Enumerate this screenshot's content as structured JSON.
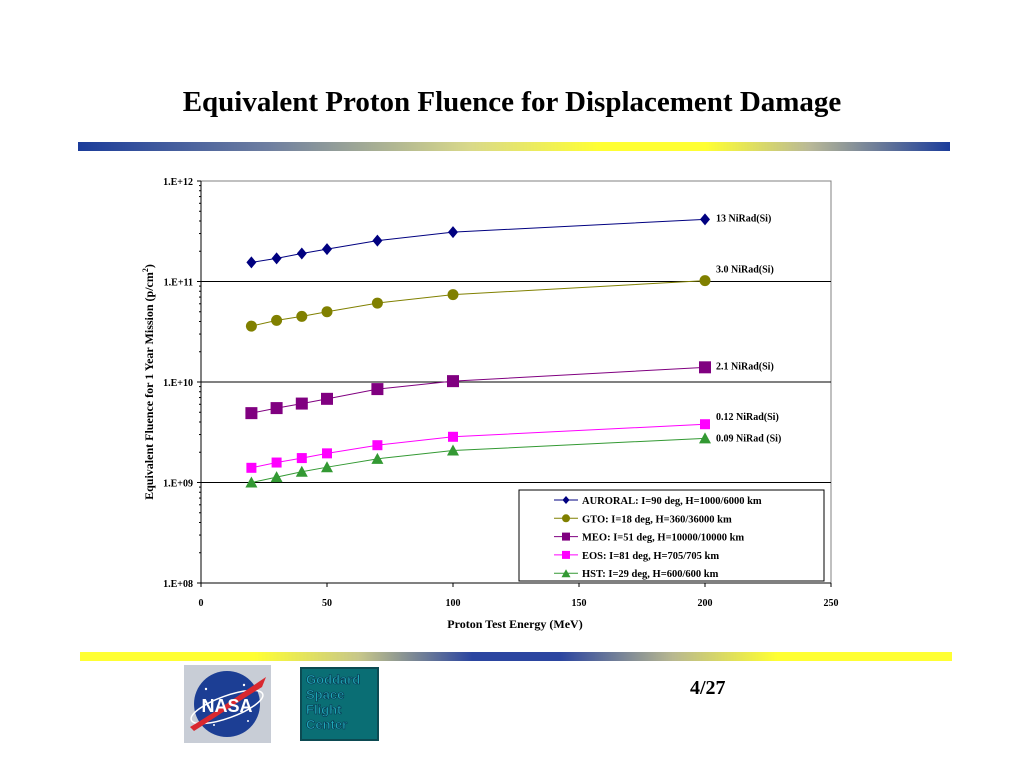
{
  "title": "Equivalent Proton Fluence for Displacement Damage",
  "page_number": "4/27",
  "logos": {
    "nasa": "NASA",
    "gsfc_lines": [
      "Goddard",
      "Space",
      "Flight",
      "Center"
    ]
  },
  "chart_data": {
    "type": "line",
    "xlabel": "Proton Test Energy (MeV)",
    "ylabel_parts": [
      "Equivalent Fluence for 1 Year Mission (p/cm",
      "2",
      ")"
    ],
    "xlim": [
      0,
      250
    ],
    "xticks": [
      "0",
      "50",
      "100",
      "150",
      "200",
      "250"
    ],
    "ylim": [
      100000000,
      1000000000000
    ],
    "yscale": "log",
    "yticks": [
      "1.E+08",
      "1.E+09",
      "1.E+10",
      "1.E+11",
      "1.E+12"
    ],
    "grid": "horizontal-major",
    "legend_position": "bottom-right",
    "x": [
      20,
      30,
      40,
      50,
      70,
      100,
      200
    ],
    "series": [
      {
        "name": "AURORAL: I=90 deg, H=1000/6000 km",
        "color": "#000080",
        "marker": "diamond",
        "values": [
          155000000000,
          170000000000,
          190000000000,
          210000000000,
          255000000000,
          310000000000,
          415000000000
        ],
        "annotation": "13 NiRad(Si)"
      },
      {
        "name": "GTO:  I=18 deg, H=360/36000 km",
        "color": "#808000",
        "marker": "circle",
        "values": [
          36000000000,
          41000000000,
          45000000000,
          50000000000,
          61000000000,
          74000000000,
          102000000000
        ],
        "annotation": "3.0 NiRad(Si)"
      },
      {
        "name": "MEO: I=51 deg, H=10000/10000 km",
        "color": "#800080",
        "marker": "square",
        "values": [
          4900000000,
          5500000000,
          6100000000,
          6800000000,
          8500000000,
          10200000000,
          14000000000
        ],
        "annotation": "2.1 NiRad(Si)"
      },
      {
        "name": "EOS: I=81 deg, H=705/705 km",
        "color": "#ff00ff",
        "marker": "square-small",
        "values": [
          1400000000,
          1580000000,
          1750000000,
          1950000000,
          2350000000,
          2850000000,
          3800000000
        ],
        "annotation": "0.12 NiRad(Si)"
      },
      {
        "name": "HST: I=29 deg, H=600/600 km",
        "color": "#339933",
        "marker": "triangle",
        "values": [
          1000000000,
          1130000000,
          1280000000,
          1420000000,
          1720000000,
          2080000000,
          2750000000
        ],
        "annotation": "0.09 NiRad (Si)"
      }
    ]
  }
}
